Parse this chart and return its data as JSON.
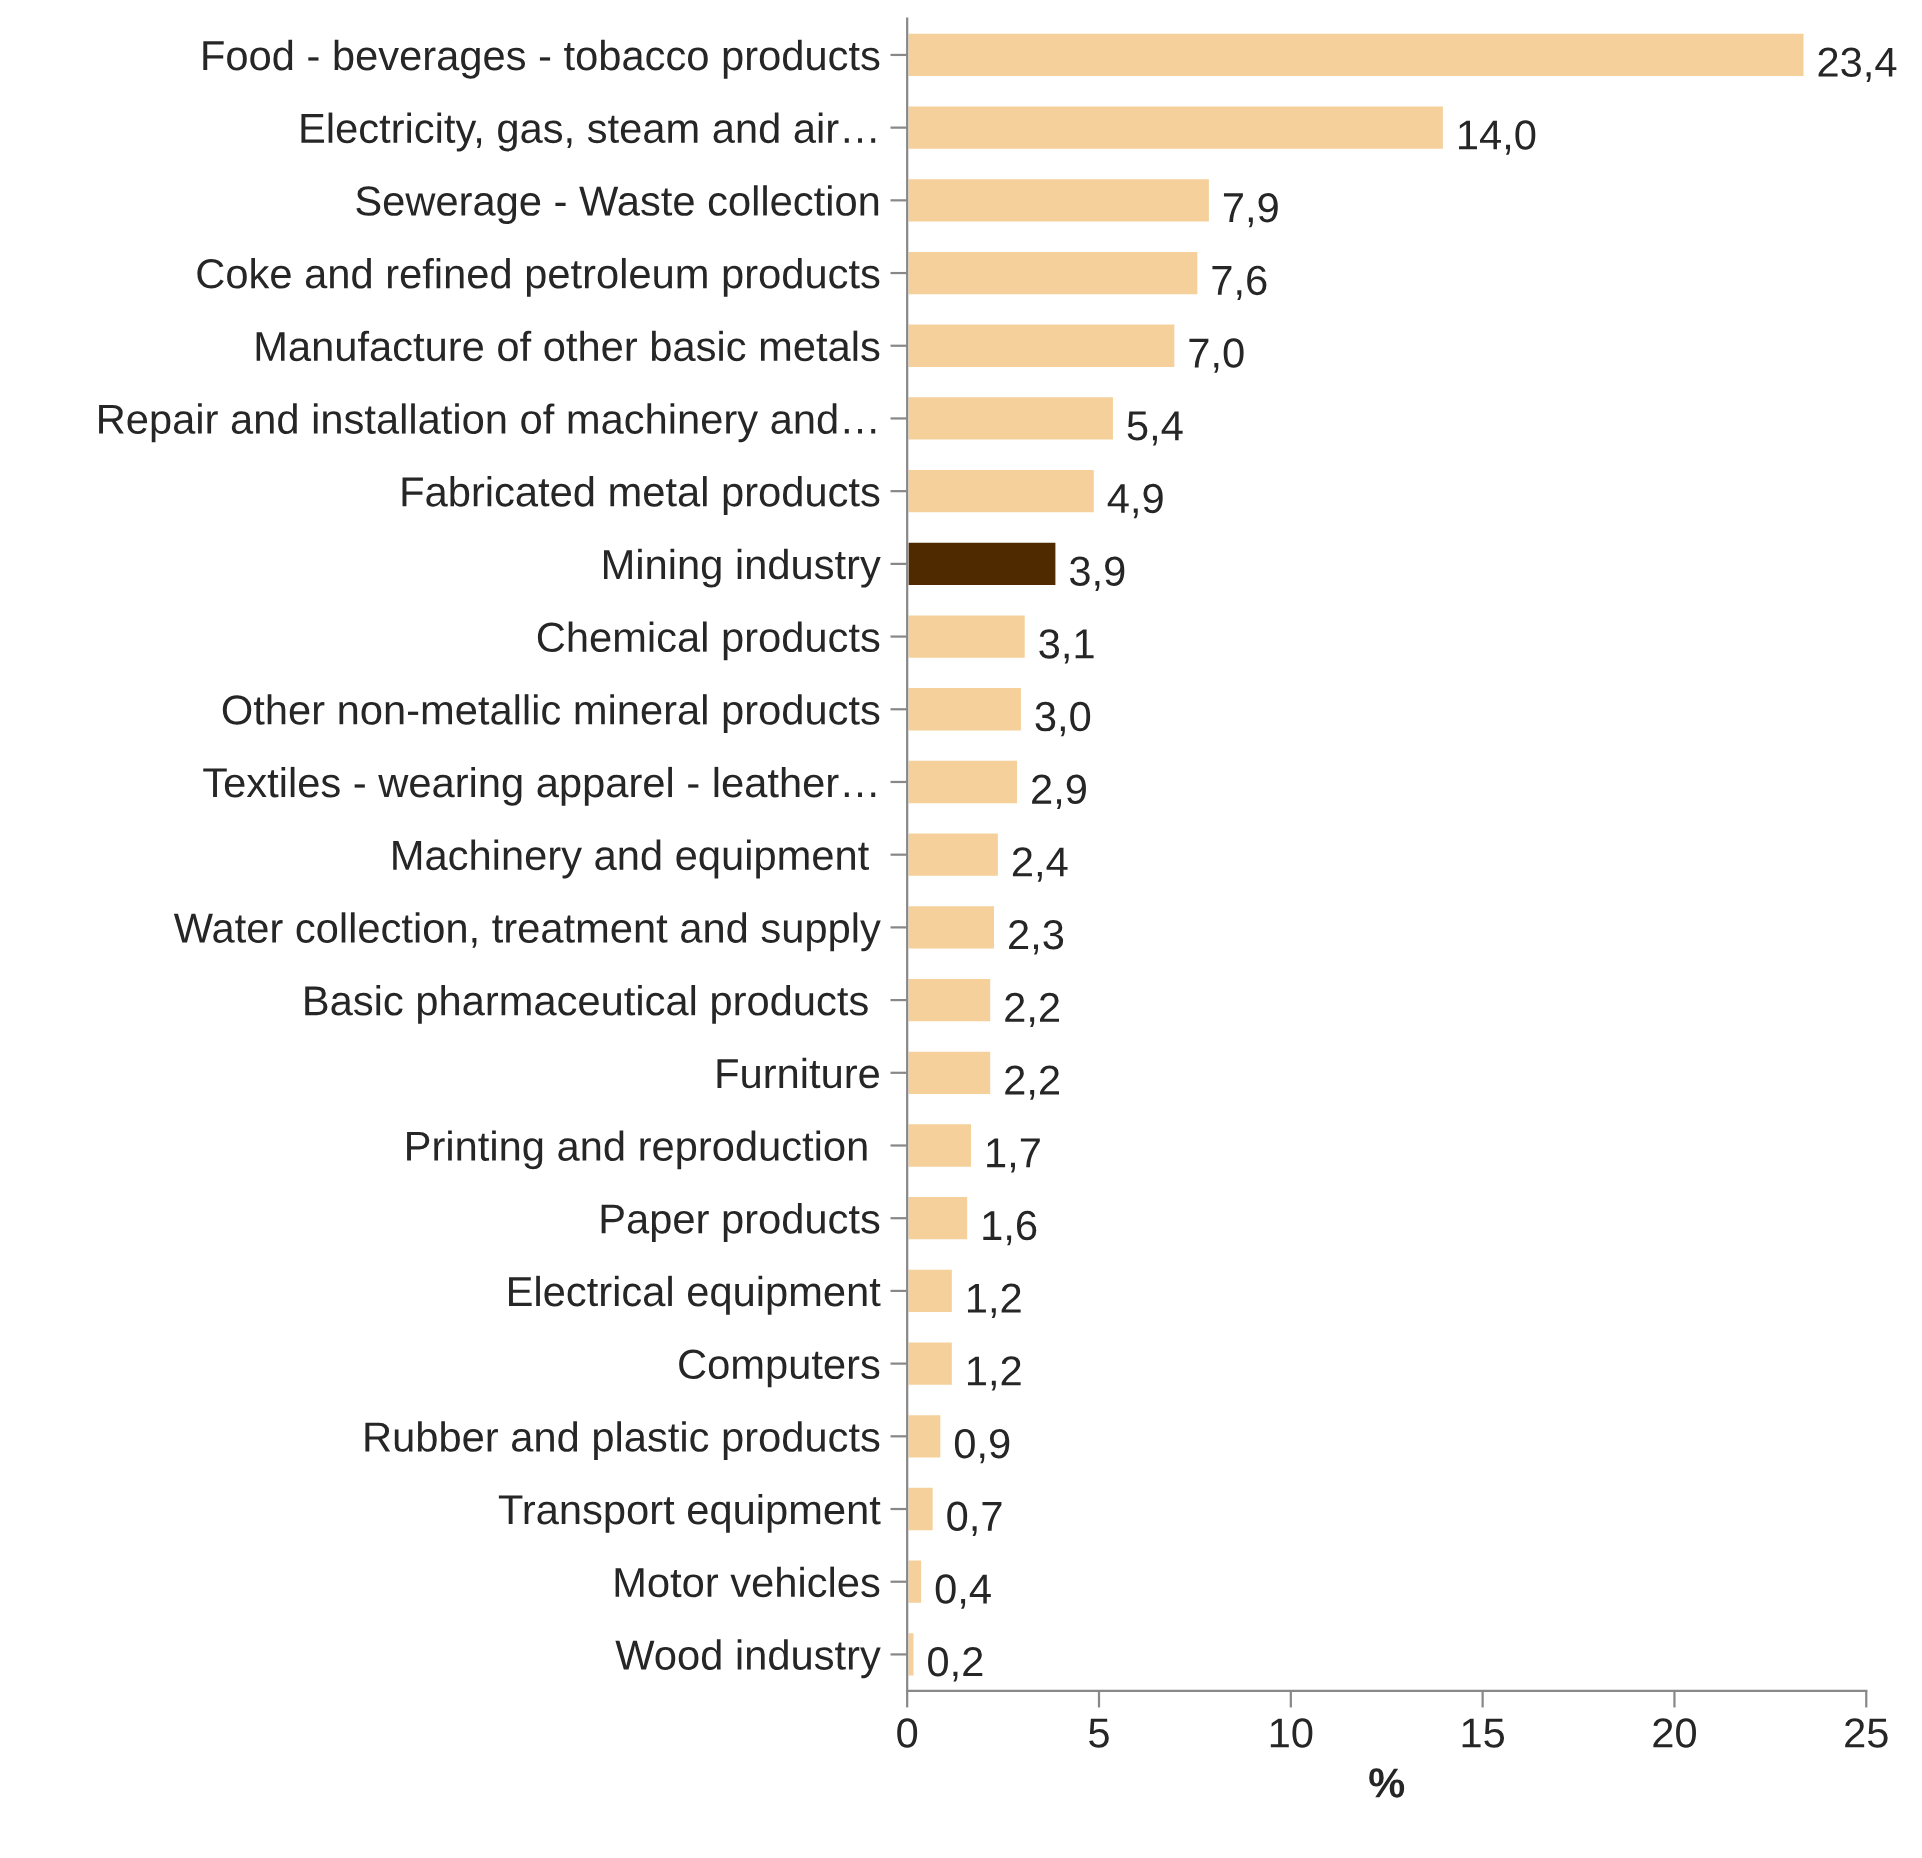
{
  "chart_data": {
    "type": "bar",
    "orientation": "horizontal",
    "xlabel": "%",
    "categories": [
      "Food - beverages - tobacco products",
      "Electricity, gas, steam and air…",
      "Sewerage - Waste collection",
      "Coke and refined petroleum products",
      "Manufacture of other basic metals",
      "Repair and installation of machinery and…",
      "Fabricated metal products",
      "Mining industry",
      "Chemical products",
      "Other non-metallic mineral products",
      "Textiles - wearing apparel - leather…",
      "Machinery and equipment ",
      "Water collection, treatment and supply",
      "Basic pharmaceutical products ",
      "Furniture",
      "Printing and reproduction ",
      "Paper products",
      "Electrical equipment",
      "Computers",
      "Rubber and plastic products",
      "Transport equipment",
      "Motor vehicles",
      "Wood industry"
    ],
    "values": [
      23.4,
      14.0,
      7.9,
      7.6,
      7.0,
      5.4,
      4.9,
      3.9,
      3.1,
      3.0,
      2.9,
      2.4,
      2.3,
      2.2,
      2.2,
      1.7,
      1.6,
      1.2,
      1.2,
      0.9,
      0.7,
      0.4,
      0.2
    ],
    "value_labels": [
      "23,4",
      "14,0",
      "7,9",
      "7,6",
      "7,0",
      "5,4",
      "4,9",
      "3,9",
      "3,1",
      "3,0",
      "2,9",
      "2,4",
      "2,3",
      "2,2",
      "2,2",
      "1,7",
      "1,6",
      "1,2",
      "1,2",
      "0,9",
      "0,7",
      "0,4",
      "0,2"
    ],
    "colors": [
      "#f5d09a",
      "#f5d09a",
      "#f5d09a",
      "#f5d09a",
      "#f5d09a",
      "#f5d09a",
      "#f5d09a",
      "#4f2a00",
      "#f5d09a",
      "#f5d09a",
      "#f5d09a",
      "#f5d09a",
      "#f5d09a",
      "#f5d09a",
      "#f5d09a",
      "#f5d09a",
      "#f5d09a",
      "#f5d09a",
      "#f5d09a",
      "#f5d09a",
      "#f5d09a",
      "#f5d09a",
      "#f5d09a"
    ],
    "xlim": [
      0,
      25
    ],
    "xticks": [
      0,
      5,
      10,
      15,
      20,
      25
    ],
    "grid": false
  }
}
